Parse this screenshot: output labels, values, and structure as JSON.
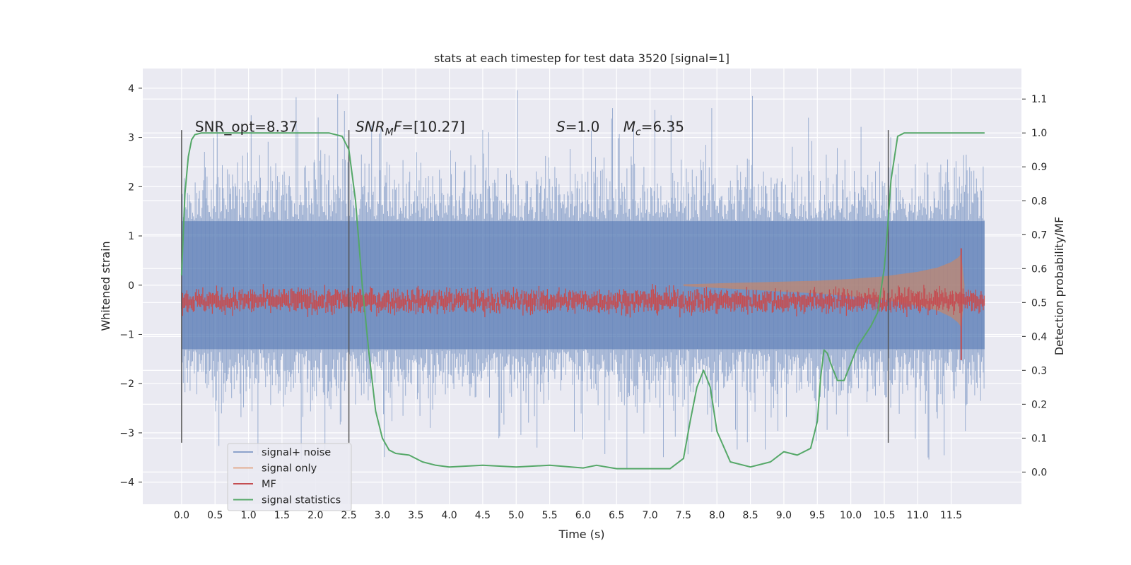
{
  "chart_data": {
    "type": "line",
    "title": "stats at each timestep for test data 3520 [signal=1]",
    "xlabel": "Time (s)",
    "ylabel": "Whitened strain",
    "ylabel_right": "Detection probability/MF",
    "xlim": [
      -0.58,
      12.55
    ],
    "ylim": [
      -4.45,
      4.4
    ],
    "ylim_right": [
      -0.095,
      1.19
    ],
    "x_ticks": [
      0.0,
      0.5,
      1.0,
      1.5,
      2.0,
      2.5,
      3.0,
      3.5,
      4.0,
      4.5,
      5.0,
      5.5,
      6.0,
      6.5,
      7.0,
      7.5,
      8.0,
      8.5,
      9.0,
      9.5,
      10.0,
      10.5,
      11.0,
      11.5
    ],
    "y_ticks": [
      -4,
      -3,
      -2,
      -1,
      0,
      1,
      2,
      3,
      4
    ],
    "y_ticks_right": [
      0.0,
      0.1,
      0.2,
      0.3,
      0.4,
      0.5,
      0.6,
      0.7,
      0.8,
      0.9,
      1.0,
      1.1
    ],
    "grid": true,
    "legend_position": "lower-left",
    "annotations": [
      {
        "text": "SNR_opt=8.37",
        "x": 0.2,
        "y": 3.2,
        "axis": "left"
      },
      {
        "text_parts": [
          {
            "t": "SNR",
            "style": "italic"
          },
          {
            "t": "M",
            "style": "italic-sub"
          },
          {
            "t": "F",
            "style": "italic"
          },
          {
            "t": "=[10.27]",
            "style": "normal"
          }
        ],
        "x": 2.6,
        "y": 3.2,
        "axis": "left"
      },
      {
        "text_parts": [
          {
            "t": "S",
            "style": "italic"
          },
          {
            "t": "=1.0",
            "style": "normal"
          }
        ],
        "x": 5.6,
        "y": 3.2,
        "axis": "left"
      },
      {
        "text_parts": [
          {
            "t": "M",
            "style": "italic"
          },
          {
            "t": "c",
            "style": "italic-sub"
          },
          {
            "t": "=6.35",
            "style": "normal"
          }
        ],
        "x": 6.6,
        "y": 3.2,
        "axis": "left"
      }
    ],
    "vertical_lines": [
      {
        "x": 0.0,
        "y_range": [
          -3.2,
          3.15
        ]
      },
      {
        "x": 2.5,
        "y_range": [
          -3.2,
          3.15
        ]
      },
      {
        "x": 10.56,
        "y_range": [
          -3.2,
          3.15
        ]
      }
    ],
    "series": [
      {
        "name": "signal+ noise",
        "axis": "left",
        "color": "#4c72b0",
        "render": "noise",
        "x_range": [
          0.0,
          12.0
        ],
        "envelope": {
          "core_amp": 1.3,
          "spike_max": 4.0,
          "spike_min": -3.9
        }
      },
      {
        "name": "signal only",
        "axis": "left",
        "color": "#dd8452",
        "render": "chirp",
        "x_range": [
          7.5,
          11.7
        ],
        "x": [
          7.5,
          8.0,
          8.5,
          9.0,
          9.5,
          10.0,
          10.5,
          11.0,
          11.3,
          11.5,
          11.6,
          11.65,
          11.7
        ],
        "amplitude": [
          0.02,
          0.04,
          0.06,
          0.08,
          0.1,
          0.14,
          0.2,
          0.3,
          0.4,
          0.52,
          0.62,
          0.7,
          0.0
        ]
      },
      {
        "name": "MF",
        "axis": "right",
        "color": "#c44e52",
        "render": "band",
        "x_range": [
          0.0,
          12.0
        ],
        "baseline": 0.505,
        "band_width": 0.025,
        "peak": {
          "x": 11.65,
          "max": 0.66,
          "min": 0.33
        }
      },
      {
        "name": "signal statistics",
        "axis": "right",
        "color": "#55a868",
        "render": "line",
        "x": [
          0.0,
          0.05,
          0.1,
          0.15,
          0.2,
          0.3,
          0.5,
          1.0,
          1.5,
          2.0,
          2.2,
          2.4,
          2.5,
          2.6,
          2.7,
          2.8,
          2.9,
          3.0,
          3.1,
          3.2,
          3.4,
          3.6,
          3.8,
          4.0,
          4.5,
          5.0,
          5.5,
          6.0,
          6.2,
          6.5,
          7.0,
          7.3,
          7.5,
          7.6,
          7.7,
          7.8,
          7.9,
          8.0,
          8.2,
          8.5,
          8.8,
          9.0,
          9.2,
          9.4,
          9.5,
          9.55,
          9.6,
          9.65,
          9.7,
          9.8,
          9.9,
          10.0,
          10.1,
          10.2,
          10.3,
          10.4,
          10.5,
          10.55,
          10.6,
          10.7,
          10.8,
          11.0,
          11.5,
          12.0
        ],
        "y": [
          0.58,
          0.82,
          0.93,
          0.98,
          0.995,
          1.0,
          1.0,
          1.0,
          1.0,
          1.0,
          1.0,
          0.99,
          0.95,
          0.8,
          0.55,
          0.35,
          0.18,
          0.1,
          0.065,
          0.055,
          0.05,
          0.03,
          0.02,
          0.015,
          0.02,
          0.015,
          0.02,
          0.012,
          0.02,
          0.01,
          0.01,
          0.01,
          0.04,
          0.15,
          0.25,
          0.3,
          0.25,
          0.12,
          0.03,
          0.015,
          0.03,
          0.06,
          0.05,
          0.07,
          0.15,
          0.28,
          0.36,
          0.35,
          0.32,
          0.27,
          0.27,
          0.32,
          0.37,
          0.4,
          0.43,
          0.47,
          0.6,
          0.72,
          0.86,
          0.99,
          1.0,
          1.0,
          1.0,
          1.0
        ]
      }
    ]
  }
}
